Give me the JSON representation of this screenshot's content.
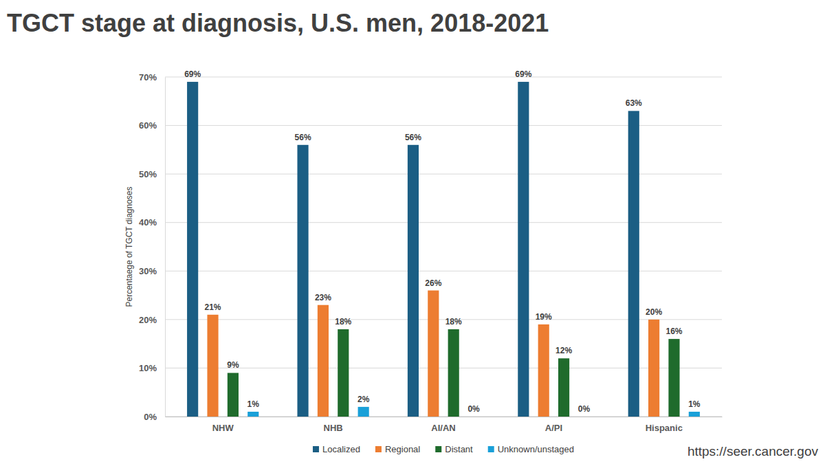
{
  "chart_data": {
    "type": "bar",
    "title": "TGCT stage at diagnosis, U.S. men, 2018-2021",
    "y_label": "Percentaege of TGCT diagnoses",
    "source": "https://seer.cancer.gov",
    "categories": [
      "NHW",
      "NHB",
      "AI/AN",
      "A/PI",
      "Hispanic"
    ],
    "series": [
      {
        "name": "Localized",
        "color": "#1b5e84",
        "values": [
          69,
          56,
          56,
          69,
          63
        ],
        "value_labels": [
          "69%",
          "56%",
          "56%",
          "69%",
          "63%"
        ]
      },
      {
        "name": "Regional",
        "color": "#ed7d31",
        "values": [
          21,
          23,
          26,
          19,
          20
        ],
        "value_labels": [
          "21%",
          "23%",
          "26%",
          "19%",
          "20%"
        ]
      },
      {
        "name": "Distant",
        "color": "#1f6b2c",
        "values": [
          9,
          18,
          18,
          12,
          16
        ],
        "value_labels": [
          "9%",
          "18%",
          "18%",
          "12%",
          "16%"
        ]
      },
      {
        "name": "Unknown/unstaged",
        "color": "#1aa0d8",
        "values": [
          1,
          2,
          0,
          0,
          1
        ],
        "value_labels": [
          "1%",
          "2%",
          "0%",
          "0%",
          "1%"
        ]
      }
    ],
    "ylim": [
      0,
      70
    ],
    "yticks": [
      {
        "value": 0,
        "label": "0%"
      },
      {
        "value": 10,
        "label": "10%"
      },
      {
        "value": 20,
        "label": "20%"
      },
      {
        "value": 30,
        "label": "30%"
      },
      {
        "value": 40,
        "label": "40%"
      },
      {
        "value": 50,
        "label": "50%"
      },
      {
        "value": 60,
        "label": "60%"
      },
      {
        "value": 70,
        "label": "70%"
      }
    ],
    "grid": true,
    "legend": "bottom",
    "data_labels": true
  }
}
